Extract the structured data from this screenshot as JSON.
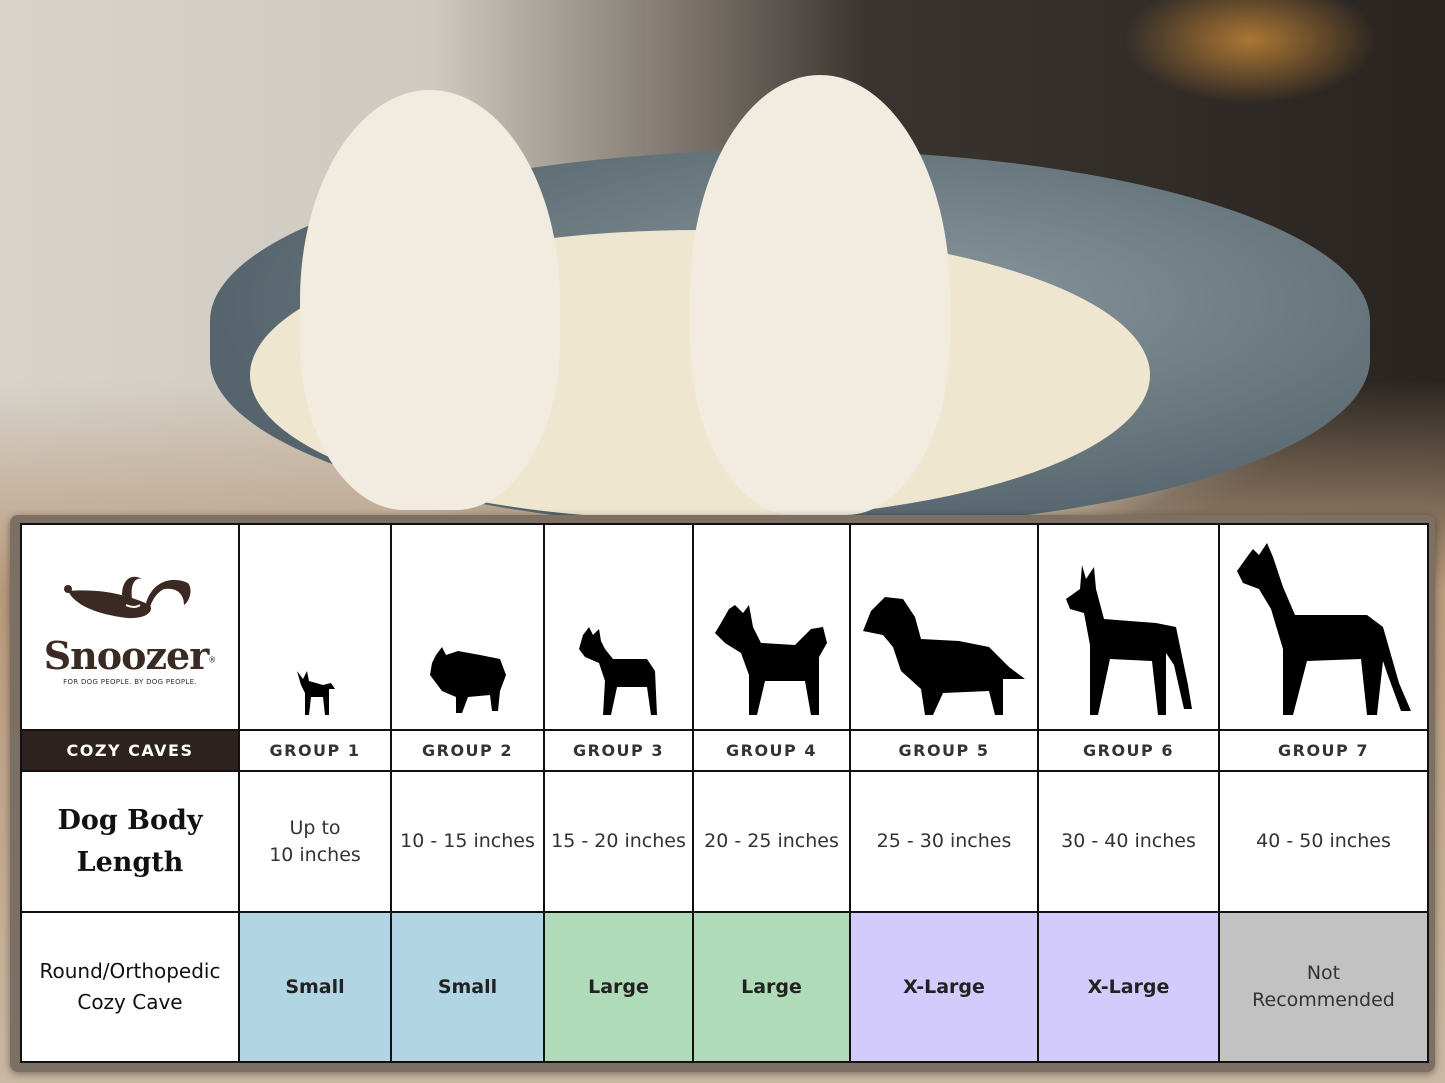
{
  "brand": {
    "name": "Snoozer",
    "registered_mark": "®",
    "tagline": "FOR DOG PEOPLE. BY DOG PEOPLE.",
    "color": "#3b2a24"
  },
  "product_line_label": "COZY CAVES",
  "groups": [
    {
      "label": "GROUP 1",
      "breed_icon": "chihuahua-silhouette-icon",
      "length": "Up to 10 inches",
      "length_lines": [
        "Up to",
        "10 inches"
      ],
      "size": "Small",
      "color": "#b1d5e2"
    },
    {
      "label": "GROUP 2",
      "breed_icon": "pomeranian-silhouette-icon",
      "length": "10 - 15 inches",
      "size": "Small",
      "color": "#b1d5e2"
    },
    {
      "label": "GROUP 3",
      "breed_icon": "boston-terrier-silhouette-icon",
      "length": "15 - 20 inches",
      "size": "Large",
      "color": "#b0dbb9"
    },
    {
      "label": "GROUP 4",
      "breed_icon": "shiba-silhouette-icon",
      "length": "20 - 25 inches",
      "size": "Large",
      "color": "#b0dbb9"
    },
    {
      "label": "GROUP 5",
      "breed_icon": "golden-retriever-silhouette-icon",
      "length": "25 - 30 inches",
      "size": "X-Large",
      "color": "#d3cbfb"
    },
    {
      "label": "GROUP 6",
      "breed_icon": "doberman-silhouette-icon",
      "length": "30 - 40 inches",
      "size": "X-Large",
      "color": "#d3cbfb"
    },
    {
      "label": "GROUP 7",
      "breed_icon": "great-dane-silhouette-icon",
      "length": "40 - 50 inches",
      "size_lines": [
        "Not",
        "Recommended"
      ],
      "color": "#c2c2c2"
    }
  ],
  "row_labels": {
    "length_lines": [
      "Dog Body",
      "Length"
    ],
    "product_lines": [
      "Round/Orthopedic",
      "Cozy Cave"
    ]
  }
}
